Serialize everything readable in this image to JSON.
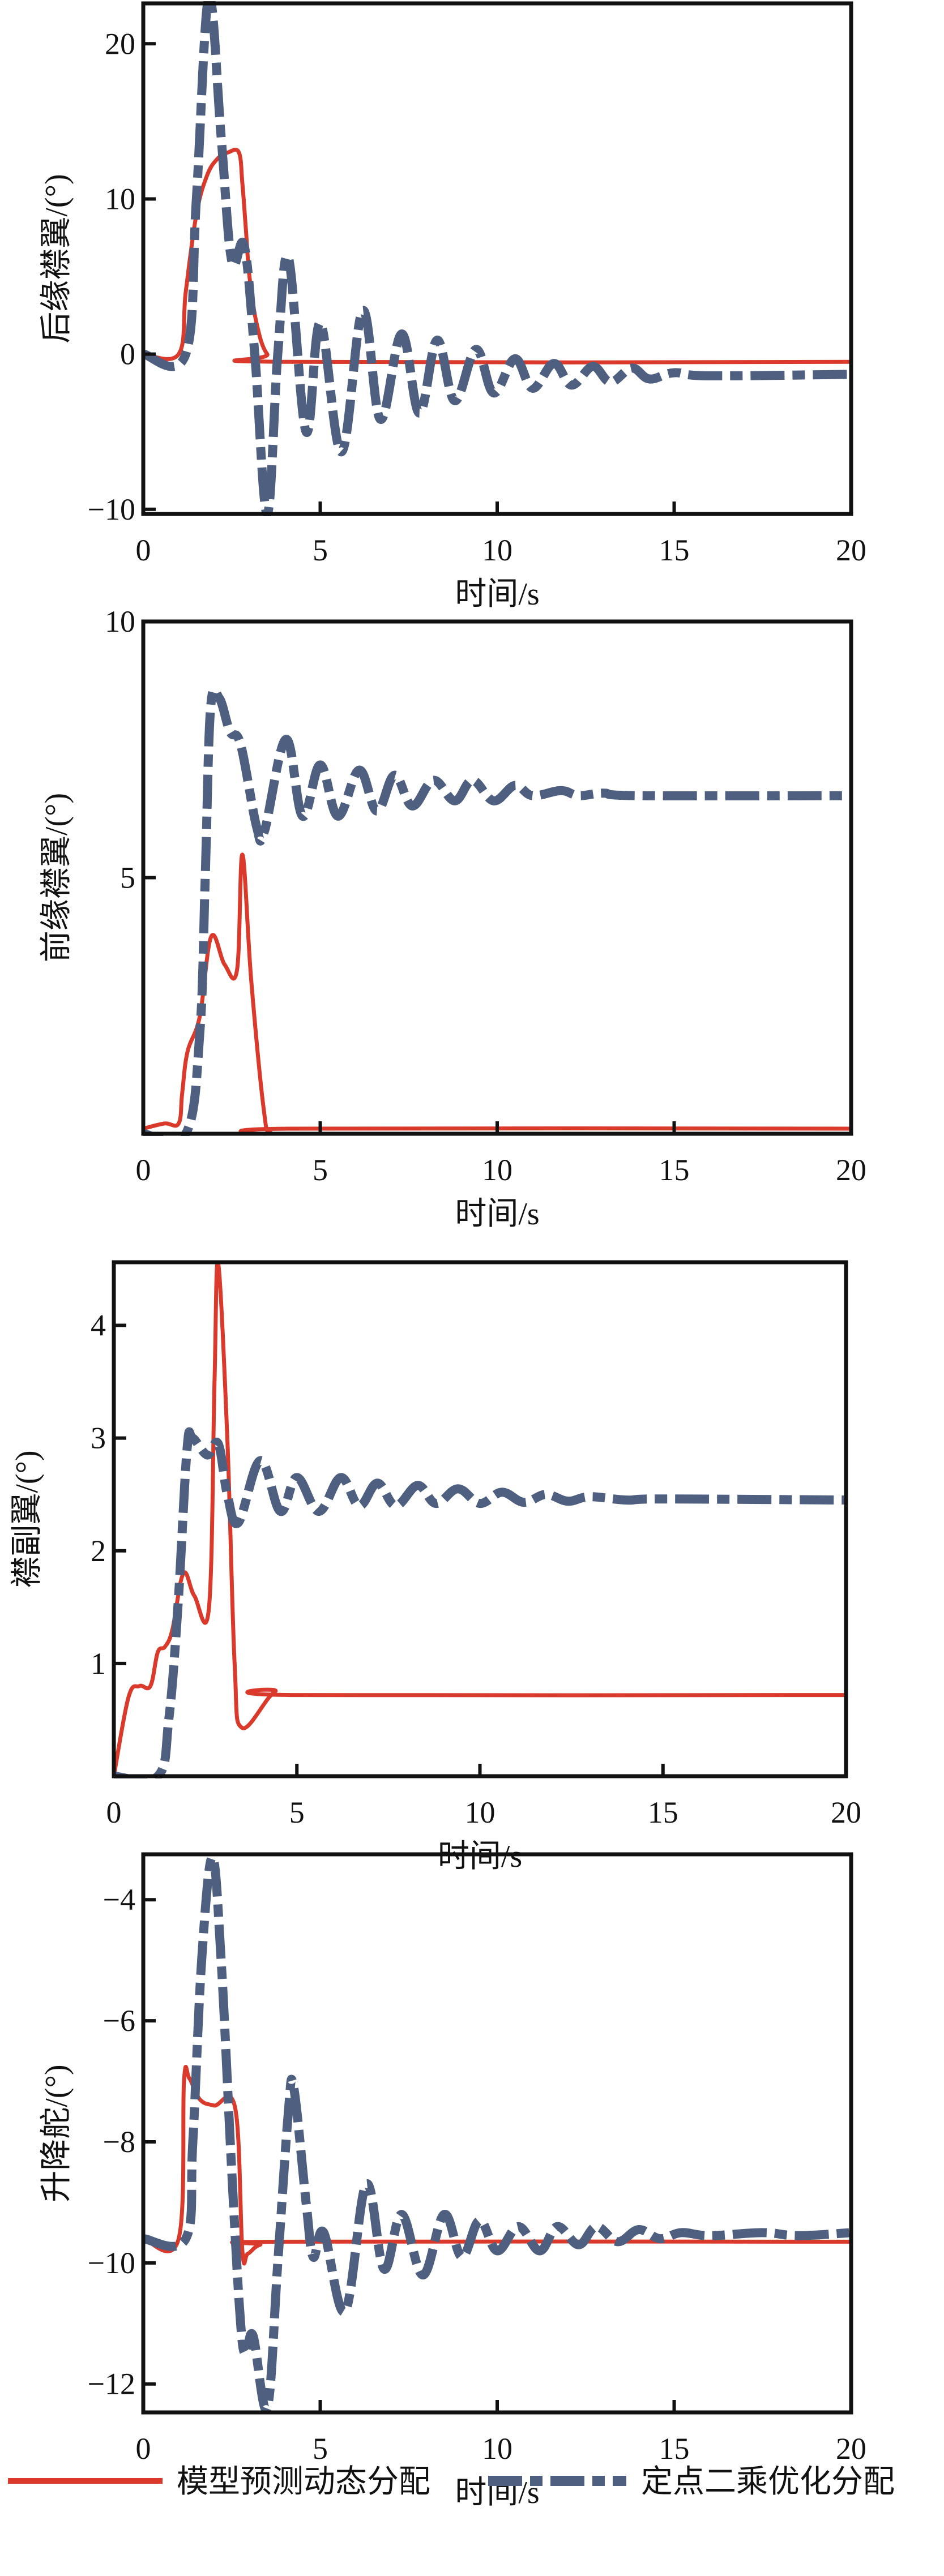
{
  "colors": {
    "red": "#d93a2b",
    "blue": "#4e5f80",
    "axis": "#111111"
  },
  "legend": {
    "items": [
      {
        "label": "模型预测动态分配",
        "color": "#d93a2b",
        "style": "solid"
      },
      {
        "label": "定点二乘优化分配",
        "color": "#4e5f80",
        "style": "dash-dot"
      }
    ]
  },
  "chart_data": [
    {
      "type": "line",
      "title": "",
      "xlabel": "时间/s",
      "ylabel": "后缘襟翼/(°)",
      "xlim": [
        0,
        20
      ],
      "ylim": [
        -10.3,
        22.6
      ],
      "xticks": [
        "0",
        "5",
        "10",
        "15",
        "20"
      ],
      "yticks": [
        "-10",
        "0",
        "10",
        "20"
      ],
      "grid": false,
      "series": [
        {
          "name": "模型预测动态分配",
          "x": [
            0,
            1.0,
            1.2,
            1.5,
            1.8,
            2.1,
            2.4,
            2.7,
            2.8,
            2.9,
            3.0,
            3.2,
            3.5,
            4.0,
            20
          ],
          "y": [
            0,
            0,
            4,
            9,
            11.5,
            12.6,
            13,
            13,
            11,
            8,
            5,
            2,
            0,
            -0.5,
            -0.5
          ]
        },
        {
          "name": "定点二乘优化分配",
          "x": [
            0,
            1.2,
            1.5,
            1.85,
            2.2,
            2.5,
            2.85,
            3.15,
            3.5,
            3.8,
            4.1,
            4.6,
            5.0,
            5.6,
            6.2,
            6.7,
            7.3,
            7.8,
            8.3,
            8.8,
            9.4,
            9.9,
            10.5,
            11.0,
            11.6,
            12.1,
            12.7,
            13.2,
            13.8,
            14.3,
            15,
            16,
            20
          ],
          "y": [
            0,
            0,
            10,
            23,
            14,
            6,
            7,
            0,
            -10.3,
            0,
            6.2,
            -5,
            2,
            -6.3,
            2.8,
            -4.2,
            1.3,
            -3.8,
            0.9,
            -3,
            0.3,
            -2.5,
            -0.3,
            -2.2,
            -0.6,
            -2,
            -0.8,
            -1.8,
            -0.9,
            -1.6,
            -1.2,
            -1.4,
            -1.3
          ]
        }
      ]
    },
    {
      "type": "line",
      "title": "",
      "xlabel": "时间/s",
      "ylabel": "前缘襟翼/(°)",
      "xlim": [
        0,
        20
      ],
      "ylim": [
        0,
        10
      ],
      "xticks": [
        "0",
        "5",
        "10",
        "15",
        "20"
      ],
      "yticks": [
        "5",
        "10"
      ],
      "grid": false,
      "series": [
        {
          "name": "模型预测动态分配",
          "x": [
            0,
            0.6,
            1.0,
            1.1,
            1.25,
            1.6,
            1.92,
            2.3,
            2.65,
            2.8,
            3.05,
            3.4,
            3.6,
            4.2,
            20
          ],
          "y": [
            0.1,
            0.2,
            0.2,
            0.8,
            1.6,
            2.3,
            3.85,
            3.3,
            3.2,
            5.45,
            3,
            0.5,
            0.02,
            0.1,
            0.1
          ]
        },
        {
          "name": "定点二乘优化分配",
          "x": [
            0,
            1.2,
            1.6,
            1.75,
            1.9,
            2.15,
            2.45,
            2.75,
            3.2,
            3.42,
            4.03,
            4.5,
            5.0,
            5.5,
            6.1,
            6.6,
            7.1,
            7.6,
            8.2,
            8.8,
            9.3,
            9.9,
            10.5,
            11.0,
            11.8,
            12.3,
            13,
            14,
            20
          ],
          "y": [
            0,
            0,
            2,
            5,
            8.3,
            8.5,
            7.85,
            7.6,
            6,
            5.9,
            7.7,
            6.2,
            7.2,
            6.2,
            7.1,
            6.3,
            7.0,
            6.4,
            6.9,
            6.5,
            6.9,
            6.5,
            6.8,
            6.6,
            6.7,
            6.6,
            6.65,
            6.6,
            6.6
          ]
        }
      ]
    },
    {
      "type": "line",
      "title": "",
      "xlabel": "时间/s",
      "ylabel": "襟副翼/(°)",
      "xlim": [
        0,
        20
      ],
      "ylim": [
        0,
        4.56
      ],
      "xticks": [
        "0",
        "5",
        "10",
        "15",
        "20"
      ],
      "yticks": [
        "1",
        "2",
        "3",
        "4"
      ],
      "grid": false,
      "series": [
        {
          "name": "模型预测动态分配",
          "x": [
            0,
            0.4,
            0.7,
            1.0,
            1.2,
            1.4,
            1.6,
            1.9,
            2.2,
            2.6,
            2.75,
            2.85,
            3.1,
            3.3,
            3.5,
            4.4,
            5,
            20
          ],
          "y": [
            0,
            0.7,
            0.8,
            0.8,
            1.1,
            1.15,
            1.3,
            1.8,
            1.6,
            1.5,
            3.5,
            4.55,
            3.0,
            1.0,
            0.43,
            0.75,
            0.72,
            0.72
          ]
        },
        {
          "name": "定点二乘优化分配",
          "x": [
            0,
            1.2,
            1.5,
            1.75,
            2.0,
            2.15,
            2.55,
            2.85,
            3.1,
            3.4,
            4.0,
            4.55,
            5.0,
            5.6,
            6.2,
            6.7,
            7.2,
            7.7,
            8.3,
            8.8,
            9.4,
            10,
            10.6,
            11.2,
            11.8,
            12.4,
            13,
            14,
            15,
            20
          ],
          "y": [
            0,
            0,
            0.5,
            1.5,
            2.9,
            3.0,
            2.85,
            2.95,
            2.5,
            2.25,
            2.8,
            2.35,
            2.65,
            2.35,
            2.65,
            2.4,
            2.6,
            2.4,
            2.58,
            2.42,
            2.55,
            2.42,
            2.52,
            2.43,
            2.5,
            2.44,
            2.48,
            2.45,
            2.46,
            2.45
          ]
        }
      ]
    },
    {
      "type": "line",
      "title": "",
      "xlabel": "时间/s",
      "ylabel": "升降舵/(°)",
      "xlim": [
        0,
        20
      ],
      "ylim": [
        -12.47,
        -3.25
      ],
      "xticks": [
        "0",
        "5",
        "10",
        "15",
        "20"
      ],
      "yticks": [
        "-12",
        "-10",
        "-8",
        "-6",
        "-4"
      ],
      "grid": false,
      "series": [
        {
          "name": "模型预测动态分配",
          "x": [
            0,
            1.0,
            1.15,
            1.3,
            1.6,
            2.0,
            2.6,
            2.8,
            2.95,
            3.3,
            4,
            20
          ],
          "y": [
            -9.6,
            -9.6,
            -7.0,
            -6.95,
            -7.3,
            -7.4,
            -7.45,
            -9.8,
            -9.85,
            -9.7,
            -9.65,
            -9.65
          ]
        },
        {
          "name": "定点二乘优化分配",
          "x": [
            0,
            1.2,
            1.4,
            1.65,
            1.95,
            2.2,
            2.5,
            2.75,
            2.9,
            3.1,
            3.5,
            3.8,
            4.1,
            4.25,
            4.6,
            4.8,
            5.1,
            5.7,
            6.3,
            6.8,
            7.3,
            7.9,
            8.5,
            9.0,
            9.5,
            10,
            10.6,
            11.2,
            11.7,
            12.3,
            12.8,
            13.4,
            14.0,
            14.6,
            15.2,
            16,
            17.5,
            18.5,
            20
          ],
          "y": [
            -9.6,
            -9.6,
            -8,
            -5,
            -3.3,
            -5,
            -8.5,
            -11,
            -11.5,
            -11.2,
            -12.4,
            -10,
            -7.5,
            -7.1,
            -9,
            -9.9,
            -9.5,
            -10.8,
            -8.7,
            -10.1,
            -9.2,
            -10.2,
            -9.2,
            -9.9,
            -9.3,
            -9.8,
            -9.4,
            -9.8,
            -9.4,
            -9.7,
            -9.4,
            -9.65,
            -9.45,
            -9.6,
            -9.5,
            -9.55,
            -9.5,
            -9.55,
            -9.5
          ]
        }
      ]
    }
  ]
}
